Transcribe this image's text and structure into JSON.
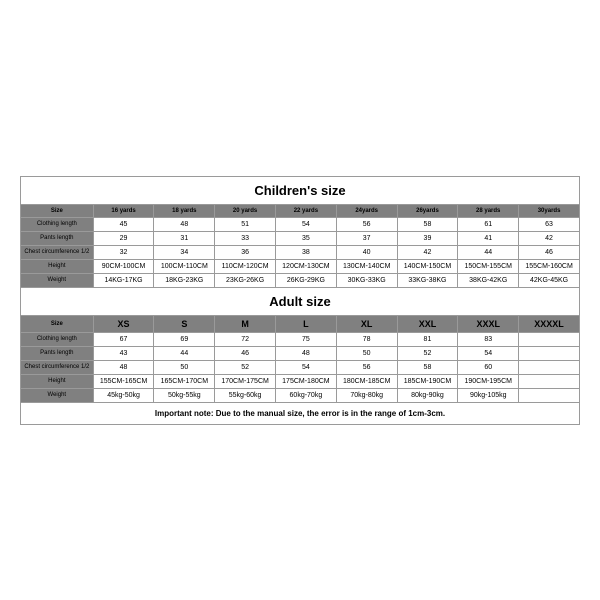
{
  "children": {
    "title": "Children's size",
    "headers": [
      "Size",
      "16 yards",
      "18 yards",
      "20 yards",
      "22 yards",
      "24yards",
      "26yards",
      "28 yards",
      "30yards"
    ],
    "rows": [
      {
        "label": "Clothing length",
        "cells": [
          "45",
          "48",
          "51",
          "54",
          "56",
          "58",
          "61",
          "63"
        ]
      },
      {
        "label": "Pants length",
        "cells": [
          "29",
          "31",
          "33",
          "35",
          "37",
          "39",
          "41",
          "42"
        ]
      },
      {
        "label": "Chest circumference 1/2",
        "cells": [
          "32",
          "34",
          "36",
          "38",
          "40",
          "42",
          "44",
          "46"
        ]
      },
      {
        "label": "Height",
        "cells": [
          "90CM-100CM",
          "100CM-110CM",
          "110CM-120CM",
          "120CM-130CM",
          "130CM-140CM",
          "140CM-150CM",
          "150CM-155CM",
          "155CM-160CM"
        ]
      },
      {
        "label": "Weight",
        "cells": [
          "14KG-17KG",
          "18KG-23KG",
          "23KG-26KG",
          "26KG-29KG",
          "30KG-33KG",
          "33KG-38KG",
          "38KG-42KG",
          "42KG-45KG"
        ]
      }
    ]
  },
  "adult": {
    "title": "Adult size",
    "headers": [
      "Size",
      "XS",
      "S",
      "M",
      "L",
      "XL",
      "XXL",
      "XXXL",
      "XXXXL"
    ],
    "rows": [
      {
        "label": "Clothing length",
        "cells": [
          "67",
          "69",
          "72",
          "75",
          "78",
          "81",
          "83",
          ""
        ]
      },
      {
        "label": "Pants length",
        "cells": [
          "43",
          "44",
          "46",
          "48",
          "50",
          "52",
          "54",
          ""
        ]
      },
      {
        "label": "Chest circumference 1/2",
        "cells": [
          "48",
          "50",
          "52",
          "54",
          "56",
          "58",
          "60",
          ""
        ]
      },
      {
        "label": "Height",
        "cells": [
          "155CM-165CM",
          "165CM-170CM",
          "170CM-175CM",
          "175CM-180CM",
          "180CM-185CM",
          "185CM-190CM",
          "190CM-195CM",
          ""
        ]
      },
      {
        "label": "Weight",
        "cells": [
          "45kg-50kg",
          "50kg-55kg",
          "55kg-60kg",
          "60kg-70kg",
          "70kg-80kg",
          "80kg-90kg",
          "90kg-105kg",
          ""
        ]
      }
    ]
  },
  "note": "Important note: Due to the manual size, the error is in the range of 1cm-3cm.",
  "colors": {
    "border": "#9a9a9a",
    "header_bg": "#808080",
    "bg": "#ffffff",
    "text": "#000000"
  }
}
